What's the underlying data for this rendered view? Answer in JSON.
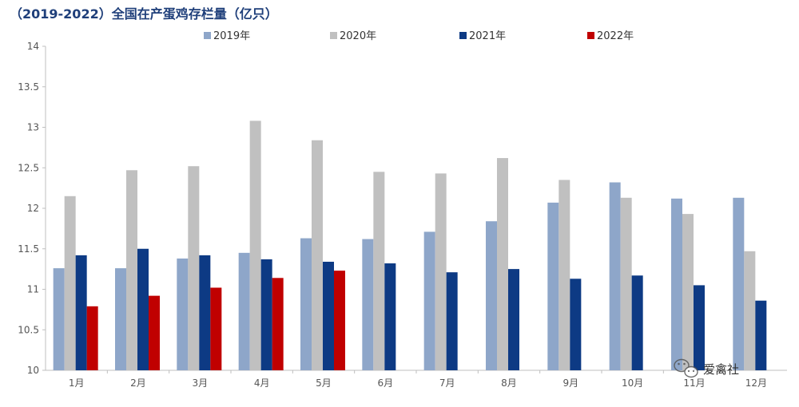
{
  "chart_data": {
    "type": "bar",
    "title": "（2019-2022）全国在产蛋鸡存栏量（亿只）",
    "categories": [
      "1月",
      "2月",
      "3月",
      "4月",
      "5月",
      "6月",
      "7月",
      "8月",
      "9月",
      "10月",
      "11月",
      "12月"
    ],
    "series": [
      {
        "name": "2019年",
        "color": "#8ea6c9",
        "values": [
          11.26,
          11.26,
          11.38,
          11.45,
          11.63,
          11.62,
          11.71,
          11.84,
          12.07,
          12.32,
          12.12,
          12.13
        ]
      },
      {
        "name": "2020年",
        "color": "#c0c0c0",
        "values": [
          12.15,
          12.47,
          12.52,
          13.08,
          12.84,
          12.45,
          12.43,
          12.62,
          12.35,
          12.13,
          11.93,
          11.47
        ]
      },
      {
        "name": "2021年",
        "color": "#0d3a84",
        "values": [
          11.42,
          11.5,
          11.42,
          11.37,
          11.34,
          11.32,
          11.21,
          11.25,
          11.13,
          11.17,
          11.05,
          10.86
        ]
      },
      {
        "name": "2022年",
        "color": "#c00000",
        "values": [
          10.79,
          10.92,
          11.02,
          11.14,
          11.23,
          null,
          null,
          null,
          null,
          null,
          null,
          null
        ]
      }
    ],
    "yticks": [
      "10",
      "10.5",
      "11",
      "11.5",
      "12",
      "12.5",
      "13",
      "13.5",
      "14"
    ],
    "ylim": [
      10,
      14
    ],
    "grid": false,
    "legend": "top"
  },
  "watermark": {
    "text": "爱禽社",
    "icon": "wechat-icon"
  }
}
